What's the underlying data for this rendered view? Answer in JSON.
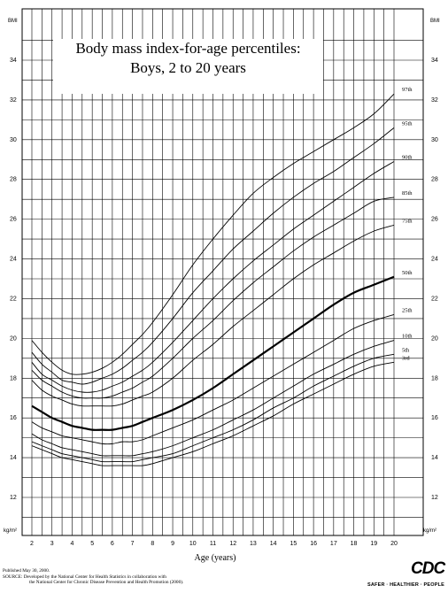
{
  "chart_data": {
    "type": "line",
    "title": "Body mass index-for-age percentiles:",
    "subtitle": "Boys, 2 to 20 years",
    "xlabel": "Age (years)",
    "ylabel": "BMI",
    "yunit": "kg/m²",
    "xlim": [
      1.5,
      21
    ],
    "ylim": [
      10.5,
      35.5
    ],
    "x_ticks": [
      2,
      3,
      4,
      5,
      6,
      7,
      8,
      9,
      10,
      11,
      12,
      13,
      14,
      15,
      16,
      17,
      18,
      19,
      20
    ],
    "y_ticks": [
      12,
      14,
      16,
      18,
      20,
      22,
      24,
      26,
      28,
      30,
      32,
      34
    ],
    "grid": true,
    "x": [
      2,
      2.5,
      3,
      3.5,
      4,
      4.5,
      5,
      5.5,
      6,
      6.5,
      7,
      7.5,
      8,
      9,
      10,
      11,
      12,
      13,
      14,
      15,
      16,
      17,
      18,
      19,
      20
    ],
    "series": [
      {
        "name": "97th",
        "values": [
          19.9,
          19.3,
          18.8,
          18.4,
          18.2,
          18.2,
          18.3,
          18.5,
          18.8,
          19.2,
          19.7,
          20.2,
          20.8,
          22.2,
          23.7,
          25.0,
          26.2,
          27.3,
          28.1,
          28.8,
          29.4,
          30.0,
          30.6,
          31.3,
          32.3
        ]
      },
      {
        "name": "95th",
        "values": [
          19.3,
          18.7,
          18.3,
          17.9,
          17.8,
          17.7,
          17.8,
          18.0,
          18.2,
          18.5,
          18.9,
          19.3,
          19.8,
          21.0,
          22.3,
          23.4,
          24.5,
          25.4,
          26.3,
          27.1,
          27.8,
          28.4,
          29.1,
          29.8,
          30.6
        ]
      },
      {
        "name": "90th",
        "values": [
          18.8,
          18.2,
          17.9,
          17.6,
          17.4,
          17.3,
          17.3,
          17.4,
          17.6,
          17.8,
          18.1,
          18.4,
          18.8,
          19.8,
          20.9,
          22.0,
          23.0,
          23.9,
          24.7,
          25.5,
          26.2,
          26.9,
          27.6,
          28.3,
          28.9
        ]
      },
      {
        "name": "85th",
        "values": [
          18.4,
          17.9,
          17.6,
          17.3,
          17.1,
          17.0,
          17.0,
          17.0,
          17.1,
          17.3,
          17.5,
          17.8,
          18.1,
          19.0,
          20.0,
          20.9,
          21.9,
          22.8,
          23.6,
          24.4,
          25.1,
          25.7,
          26.3,
          26.9,
          27.1
        ]
      },
      {
        "name": "75th",
        "values": [
          17.9,
          17.4,
          17.1,
          16.9,
          16.7,
          16.6,
          16.6,
          16.6,
          16.6,
          16.7,
          16.9,
          17.1,
          17.3,
          18.0,
          18.9,
          19.7,
          20.6,
          21.4,
          22.2,
          23.0,
          23.7,
          24.3,
          24.9,
          25.4,
          25.7
        ]
      },
      {
        "name": "50th",
        "values": [
          16.6,
          16.3,
          16.0,
          15.8,
          15.6,
          15.5,
          15.4,
          15.4,
          15.4,
          15.5,
          15.6,
          15.8,
          16.0,
          16.4,
          16.9,
          17.5,
          18.2,
          18.9,
          19.6,
          20.3,
          21.0,
          21.7,
          22.3,
          22.7,
          23.1
        ]
      },
      {
        "name": "25th",
        "values": [
          15.8,
          15.5,
          15.3,
          15.1,
          15.0,
          14.9,
          14.8,
          14.7,
          14.7,
          14.8,
          14.8,
          14.9,
          15.1,
          15.5,
          15.9,
          16.4,
          16.9,
          17.5,
          18.1,
          18.7,
          19.3,
          19.9,
          20.5,
          20.9,
          21.2
        ]
      },
      {
        "name": "10th",
        "values": [
          15.2,
          14.9,
          14.7,
          14.5,
          14.4,
          14.3,
          14.2,
          14.1,
          14.1,
          14.1,
          14.1,
          14.2,
          14.3,
          14.6,
          15.0,
          15.4,
          15.9,
          16.4,
          17.0,
          17.6,
          18.2,
          18.7,
          19.2,
          19.6,
          19.9
        ]
      },
      {
        "name": "5th",
        "values": [
          14.8,
          14.6,
          14.4,
          14.2,
          14.1,
          14.0,
          13.9,
          13.8,
          13.8,
          13.8,
          13.8,
          13.9,
          14.0,
          14.2,
          14.6,
          15.0,
          15.4,
          15.9,
          16.5,
          17.0,
          17.6,
          18.1,
          18.6,
          19.0,
          19.2
        ]
      },
      {
        "name": "3rd",
        "values": [
          14.6,
          14.4,
          14.2,
          14.0,
          13.9,
          13.8,
          13.7,
          13.6,
          13.6,
          13.6,
          13.6,
          13.6,
          13.7,
          14.0,
          14.3,
          14.7,
          15.1,
          15.6,
          16.1,
          16.7,
          17.2,
          17.7,
          18.2,
          18.6,
          18.8
        ]
      }
    ],
    "bold_series": "50th",
    "legend": "right-end labels"
  },
  "footer": {
    "published": "Published May 30, 2000.",
    "source": "SOURCE: Developed by the National Center for Health Statistics in collaboration with",
    "source2": "the National Center for Chronic Disease Prevention and Health Promotion (2000)."
  },
  "logo": {
    "mark": "CDC",
    "tagline": "SAFER · HEALTHIER · PEOPLE"
  }
}
